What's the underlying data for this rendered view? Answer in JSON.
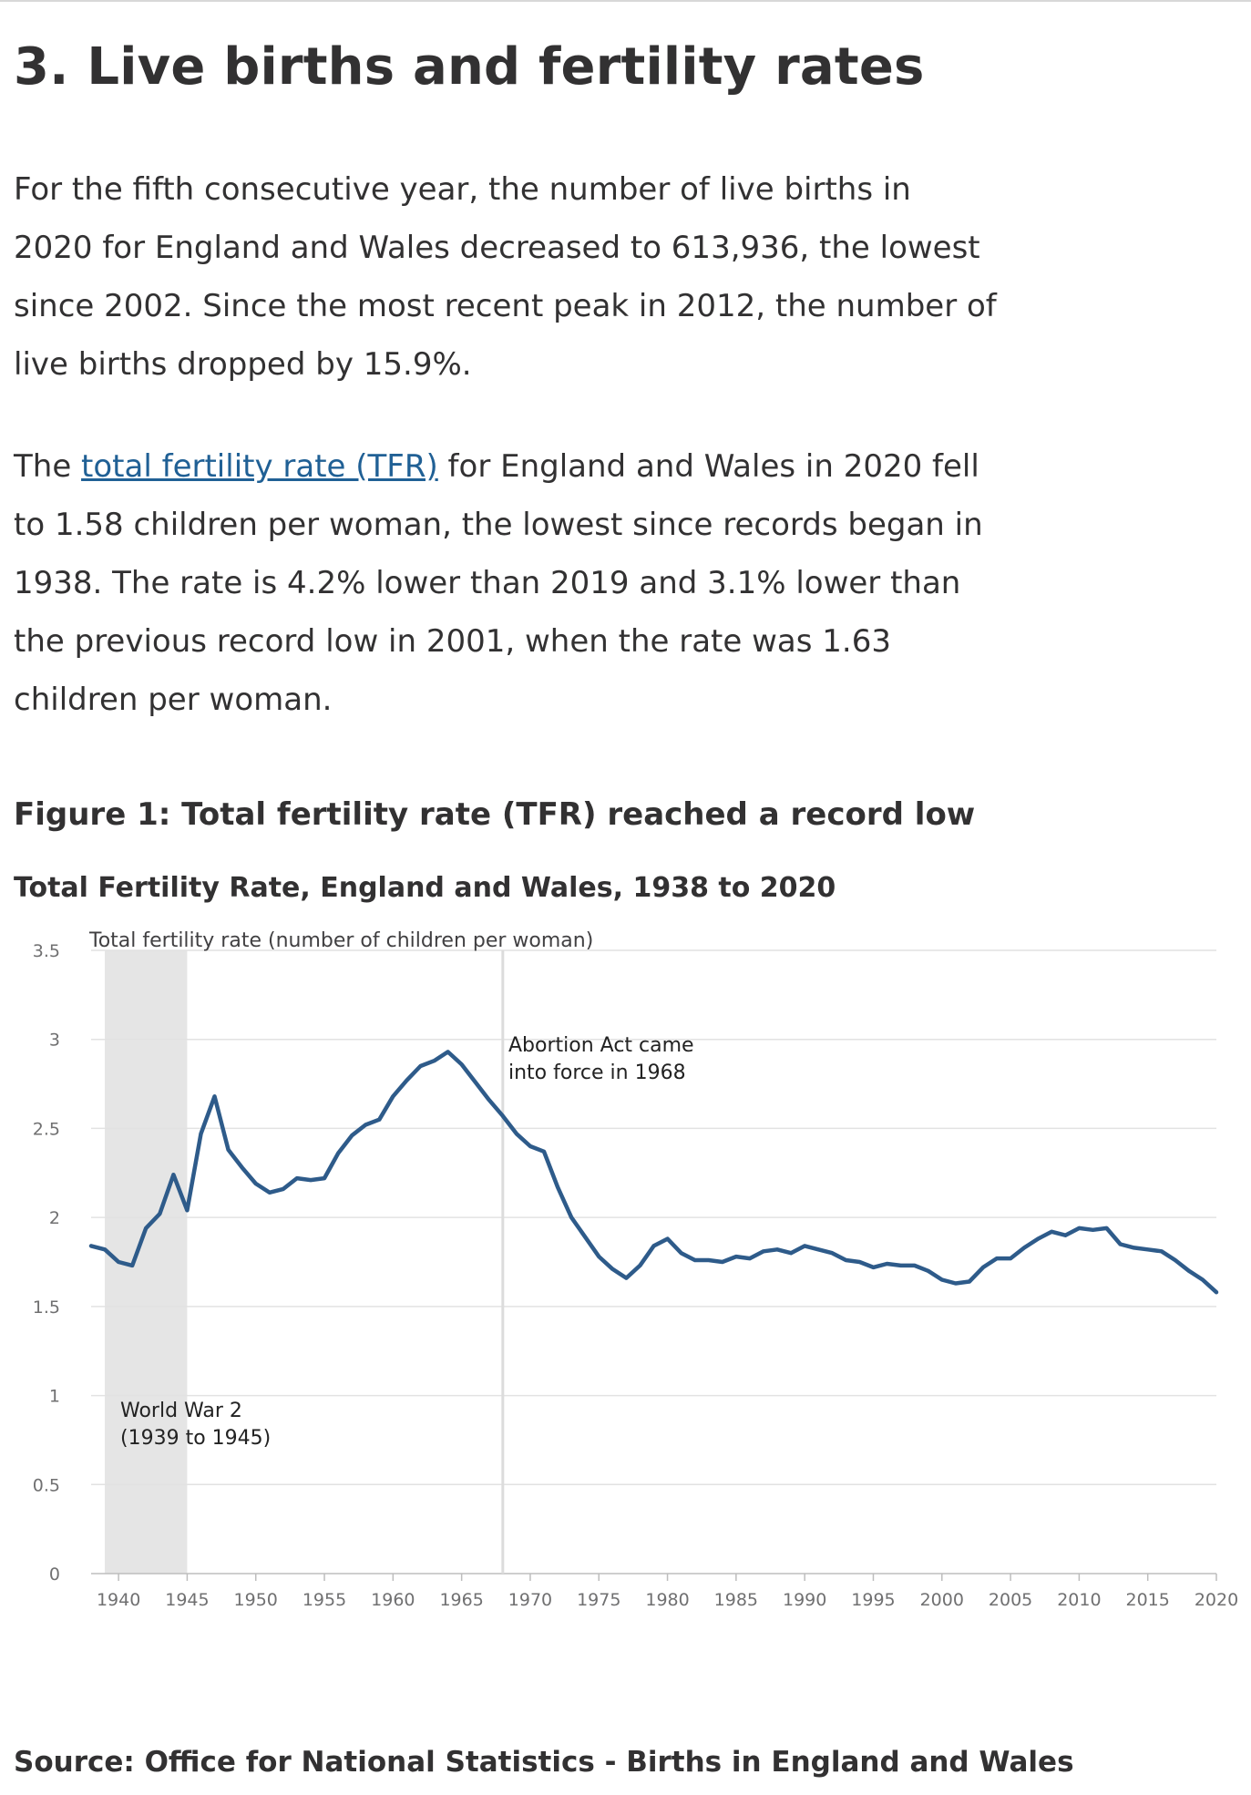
{
  "page": {
    "heading": "3.  Live births and fertility rates",
    "paragraph1": "For the fifth consecutive year, the number of live births in 2020 for England and Wales decreased to 613,936, the lowest since 2002. Since the most recent peak in 2012, the number of live births dropped by 15.9%.",
    "paragraph2": {
      "before": "The ",
      "link": "total fertility rate (TFR)",
      "after": " for England and Wales in 2020 fell to 1.58 children per woman, the lowest since records began in 1938. The rate is 4.2% lower than 2019 and 3.1% lower than the previous record low in 2001, when the rate was 1.63 children per woman."
    },
    "figure_title": "Figure 1: Total fertility rate (TFR) reached a record low",
    "source": "Source: Office for National Statistics - Births in England and Wales"
  },
  "colors": {
    "line": "#2e5b8a",
    "shade": "#e5e5e5",
    "gridline": "#e2e2e2",
    "marker": "#dcdcdc"
  },
  "chart_data": {
    "type": "line",
    "title": "Total Fertility Rate, England and Wales, 1938 to 2020",
    "ylabel": "Total fertility rate (number of children per woman)",
    "xlabel": "",
    "xlim": [
      1938,
      2020
    ],
    "ylim": [
      0,
      3.5
    ],
    "grid": true,
    "x_ticks": [
      1940,
      1945,
      1950,
      1955,
      1960,
      1965,
      1970,
      1975,
      1980,
      1985,
      1990,
      1995,
      2000,
      2005,
      2010,
      2015,
      2020
    ],
    "y_ticks": [
      0,
      0.5,
      1,
      1.5,
      2,
      2.5,
      3,
      3.5
    ],
    "shaded_period": {
      "start": 1939,
      "end": 1945,
      "label_line1": "World War 2",
      "label_line2": "(1939 to 1945)"
    },
    "marker": {
      "year": 1968,
      "label_line1": "Abortion Act came",
      "label_line2": "into force in 1968"
    },
    "series": [
      {
        "x": [
          1938,
          1939,
          1940,
          1941,
          1942,
          1943,
          1944,
          1945,
          1946,
          1947,
          1948,
          1949,
          1950,
          1951,
          1952,
          1953,
          1954,
          1955,
          1956,
          1957,
          1958,
          1959,
          1960,
          1961,
          1962,
          1963,
          1964,
          1965,
          1966,
          1967,
          1968,
          1969,
          1970,
          1971,
          1972,
          1973,
          1974,
          1975,
          1976,
          1977,
          1978,
          1979,
          1980,
          1981,
          1982,
          1983,
          1984,
          1985,
          1986,
          1987,
          1988,
          1989,
          1990,
          1991,
          1992,
          1993,
          1994,
          1995,
          1996,
          1997,
          1998,
          1999,
          2000,
          2001,
          2002,
          2003,
          2004,
          2005,
          2006,
          2007,
          2008,
          2009,
          2010,
          2011,
          2012,
          2013,
          2014,
          2015,
          2016,
          2017,
          2018,
          2019,
          2020
        ],
        "values": [
          1.84,
          1.82,
          1.75,
          1.73,
          1.94,
          2.02,
          2.24,
          2.04,
          2.47,
          2.68,
          2.38,
          2.28,
          2.19,
          2.14,
          2.16,
          2.22,
          2.21,
          2.22,
          2.36,
          2.46,
          2.52,
          2.55,
          2.68,
          2.77,
          2.85,
          2.88,
          2.93,
          2.86,
          2.76,
          2.66,
          2.57,
          2.47,
          2.4,
          2.37,
          2.17,
          2.0,
          1.89,
          1.78,
          1.71,
          1.66,
          1.73,
          1.84,
          1.88,
          1.8,
          1.76,
          1.76,
          1.75,
          1.78,
          1.77,
          1.81,
          1.82,
          1.8,
          1.84,
          1.82,
          1.8,
          1.76,
          1.75,
          1.72,
          1.74,
          1.73,
          1.73,
          1.7,
          1.65,
          1.63,
          1.64,
          1.72,
          1.77,
          1.77,
          1.83,
          1.88,
          1.92,
          1.9,
          1.94,
          1.93,
          1.94,
          1.85,
          1.83,
          1.82,
          1.81,
          1.76,
          1.7,
          1.65,
          1.58
        ]
      }
    ]
  }
}
